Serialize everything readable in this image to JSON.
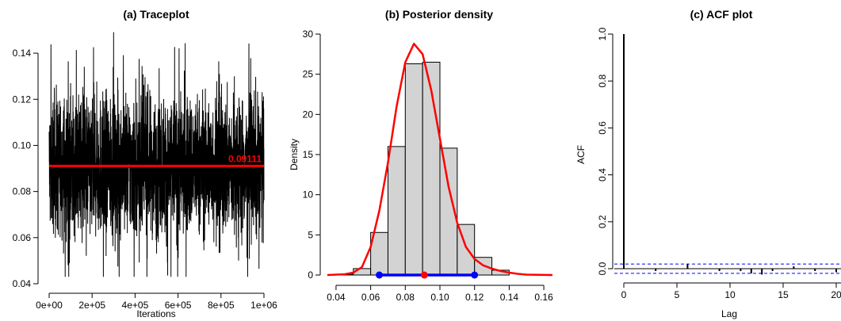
{
  "panels": [
    {
      "title": "(a) Traceplot",
      "xlabel": "Iterations",
      "ylabel": "",
      "mean_label": "0.09111",
      "x_ticks": [
        "0e+00",
        "2e+05",
        "4e+05",
        "6e+05",
        "8e+05",
        "1e+06"
      ],
      "y_ticks": [
        "0.04",
        "0.06",
        "0.08",
        "0.10",
        "0.12",
        "0.14"
      ]
    },
    {
      "title": "(b) Posterior density",
      "xlabel": "",
      "ylabel": "Density",
      "x_ticks": [
        "0.04",
        "0.06",
        "0.08",
        "0.10",
        "0.12",
        "0.14",
        "0.16"
      ],
      "y_ticks": [
        "0",
        "5",
        "10",
        "15",
        "20",
        "25",
        "30"
      ]
    },
    {
      "title": "(c) ACF plot",
      "xlabel": "Lag",
      "ylabel": "ACF",
      "x_ticks": [
        "0",
        "5",
        "10",
        "15",
        "20"
      ],
      "y_ticks": [
        "0.0",
        "0.2",
        "0.4",
        "0.6",
        "0.8",
        "1.0"
      ]
    }
  ],
  "chart_data": [
    {
      "type": "line",
      "title": "(a) Traceplot",
      "xlabel": "Iterations",
      "ylabel": "",
      "xlim": [
        0,
        1000000
      ],
      "ylim": [
        0.04,
        0.15
      ],
      "trace": {
        "n_iterations": 1000000,
        "center": 0.09111,
        "typical_range": [
          0.065,
          0.118
        ],
        "min": 0.043,
        "max": 0.155
      },
      "mean_line": 0.09111,
      "colors": {
        "trace": "#000000",
        "mean_line": "#ff0000",
        "mean_label": "#ff0000"
      }
    },
    {
      "type": "bar",
      "title": "(b) Posterior density",
      "xlabel": "",
      "ylabel": "Density",
      "xlim": [
        0.035,
        0.165
      ],
      "ylim": [
        0,
        30
      ],
      "bin_edges": [
        0.04,
        0.05,
        0.06,
        0.07,
        0.08,
        0.09,
        0.1,
        0.11,
        0.12,
        0.13,
        0.14
      ],
      "values": [
        0.1,
        0.8,
        5.3,
        16.0,
        26.3,
        26.5,
        15.8,
        6.3,
        2.2,
        0.6
      ],
      "density_curve": {
        "x": [
          0.035,
          0.045,
          0.05,
          0.055,
          0.06,
          0.065,
          0.07,
          0.075,
          0.08,
          0.085,
          0.09,
          0.095,
          0.1,
          0.105,
          0.11,
          0.115,
          0.12,
          0.125,
          0.13,
          0.135,
          0.14,
          0.145,
          0.15,
          0.165
        ],
        "y": [
          0,
          0.1,
          0.3,
          1.0,
          3.5,
          8.0,
          14.0,
          21.0,
          26.5,
          28.8,
          27.5,
          23.0,
          17.0,
          11.0,
          6.5,
          3.5,
          2.0,
          1.2,
          0.8,
          0.5,
          0.3,
          0.15,
          0.05,
          0
        ]
      },
      "interval": {
        "lower": 0.065,
        "upper": 0.12,
        "point": 0.091
      },
      "colors": {
        "bars": "#d3d3d3",
        "curve": "#ff0000",
        "interval": "#0000ff",
        "point": "#ff0000"
      }
    },
    {
      "type": "bar",
      "title": "(c) ACF plot",
      "xlabel": "Lag",
      "ylabel": "ACF",
      "xlim": [
        -0.5,
        20
      ],
      "ylim": [
        -0.03,
        1.0
      ],
      "lags": [
        0,
        1,
        2,
        3,
        4,
        5,
        6,
        7,
        8,
        9,
        10,
        11,
        12,
        13,
        14,
        15,
        16,
        17,
        18,
        19,
        20
      ],
      "values": [
        1.0,
        0.0,
        0.0,
        -0.01,
        0.0,
        0.0,
        0.02,
        0.0,
        0.0,
        -0.01,
        0.0,
        -0.01,
        -0.02,
        -0.025,
        -0.01,
        0.0,
        0.01,
        0.0,
        -0.01,
        0.0,
        -0.015
      ],
      "confidence_band": 0.02,
      "colors": {
        "bars": "#000000",
        "band": "#0000ff"
      }
    }
  ]
}
